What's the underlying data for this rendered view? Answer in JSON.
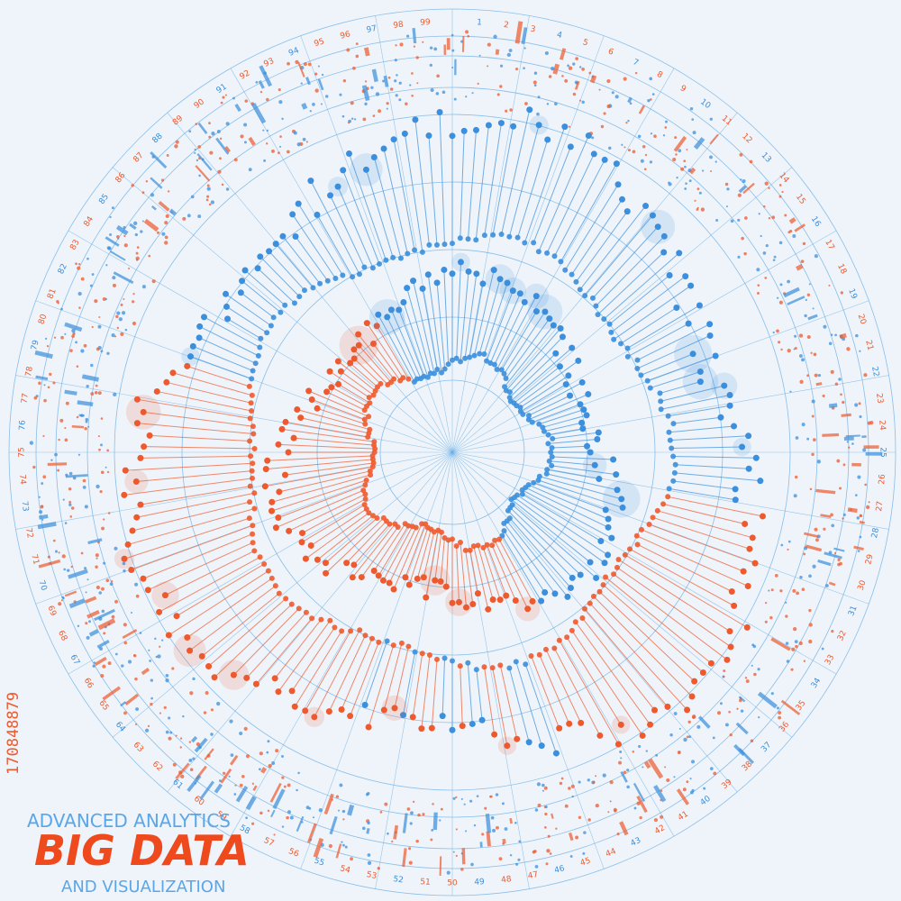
{
  "header": {
    "subtitle_top": "ADVANCED ANALYTICS",
    "title": "BIG DATA",
    "subtitle_bottom": "AND VISUALIZATION"
  },
  "watermark": "170848879",
  "ring_labels": [
    "1",
    "2",
    "3",
    "4",
    "5",
    "6",
    "7",
    "8",
    "9",
    "10",
    "11",
    "12",
    "13",
    "14",
    "15",
    "16",
    "17",
    "18",
    "19",
    "20",
    "21",
    "22",
    "23",
    "24",
    "25",
    "26",
    "27",
    "28",
    "29",
    "30",
    "31",
    "32",
    "33",
    "34",
    "35",
    "36",
    "37",
    "38",
    "39",
    "40",
    "41",
    "42",
    "43",
    "44",
    "45",
    "46",
    "47",
    "48",
    "49",
    "50",
    "51",
    "52",
    "53",
    "54",
    "55",
    "56",
    "57",
    "58",
    "59",
    "60",
    "61",
    "62",
    "63",
    "64",
    "65",
    "66",
    "67",
    "68",
    "69",
    "70",
    "71",
    "72",
    "73",
    "74",
    "75",
    "76",
    "77",
    "78",
    "79",
    "80",
    "81",
    "82",
    "83",
    "84",
    "85",
    "86",
    "87",
    "88",
    "89",
    "90",
    "91",
    "92",
    "93",
    "94",
    "95",
    "96",
    "97",
    "98",
    "99"
  ]
}
